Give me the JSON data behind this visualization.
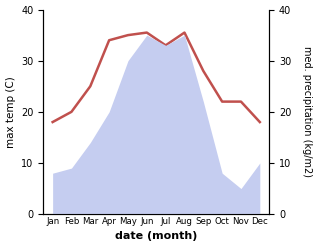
{
  "months": [
    "Jan",
    "Feb",
    "Mar",
    "Apr",
    "May",
    "Jun",
    "Jul",
    "Aug",
    "Sep",
    "Oct",
    "Nov",
    "Dec"
  ],
  "month_x": [
    0,
    1,
    2,
    3,
    4,
    5,
    6,
    7,
    8,
    9,
    10,
    11
  ],
  "temperature": [
    18,
    20,
    25,
    34,
    35,
    35.5,
    33,
    35.5,
    28,
    22,
    22,
    18
  ],
  "precipitation": [
    8,
    9,
    14,
    20,
    30,
    35,
    33,
    35,
    22,
    8,
    5,
    10
  ],
  "temp_color": "#c0504d",
  "precip_color_fill": "#c5cdf0",
  "temp_ylim": [
    0,
    40
  ],
  "precip_ylim": [
    0,
    40
  ],
  "ylabel_left": "max temp (C)",
  "ylabel_right": "med. precipitation (kg/m2)",
  "xlabel": "date (month)",
  "temp_linewidth": 1.8,
  "left_yticks": [
    0,
    10,
    20,
    30,
    40
  ],
  "right_yticks": [
    0,
    10,
    20,
    30,
    40
  ]
}
